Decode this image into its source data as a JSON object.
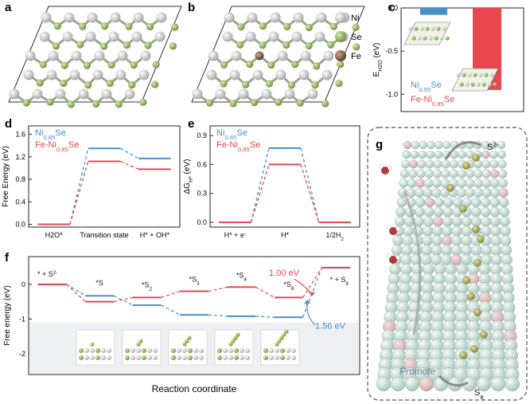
{
  "panels": {
    "a": {
      "label": "a"
    },
    "b": {
      "label": "b",
      "legend": [
        {
          "name": "Ni",
          "color": "#c9c9c9"
        },
        {
          "name": "Se",
          "color": "#9bbf63"
        },
        {
          "name": "Fe",
          "color": "#8a6a4e"
        }
      ]
    },
    "c": {
      "label": "c"
    },
    "d": {
      "label": "d"
    },
    "e": {
      "label": "e"
    },
    "f": {
      "label": "f"
    },
    "g": {
      "label": "g",
      "texts": {
        "s2": "S2-",
        "s8": "S8",
        "promote": "Promote"
      }
    }
  },
  "colors": {
    "ni085se": "#4a90c8",
    "fe_ni085se": "#e8474f"
  },
  "chart_data": [
    {
      "id": "c",
      "type": "bar",
      "ylabel": "E_H2O (eV)",
      "ylim": [
        -1.2,
        0.0
      ],
      "yticks": [
        0.0,
        -0.5,
        -1.0
      ],
      "series": [
        {
          "name": "Ni0.85Se",
          "values": [
            -0.08
          ]
        },
        {
          "name": "Fe-Ni0.85Se",
          "values": [
            -0.95
          ]
        }
      ]
    },
    {
      "id": "d",
      "type": "line",
      "ylabel": "Free Energy (eV)",
      "categories": [
        "H2O*",
        "Transition state",
        "H* + OH*"
      ],
      "ylim": [
        -0.05,
        1.75
      ],
      "yticks": [
        0.0,
        0.4,
        0.8,
        1.2,
        1.6
      ],
      "series": [
        {
          "name": "Ni0.85Se",
          "values": [
            0.0,
            1.35,
            1.17
          ]
        },
        {
          "name": "Fe-Ni0.85Se",
          "values": [
            0.0,
            1.12,
            0.98
          ]
        }
      ]
    },
    {
      "id": "e",
      "type": "line",
      "ylabel": "ΔG_H* (eV)",
      "categories": [
        "H* + e-",
        "H*",
        "1/2H2"
      ],
      "ylim": [
        -0.05,
        1.0
      ],
      "yticks": [
        0.0,
        0.3,
        0.6,
        0.9
      ],
      "series": [
        {
          "name": "Ni0.85Se",
          "values": [
            0.0,
            0.77,
            0.0
          ]
        },
        {
          "name": "Fe-Ni0.85Se",
          "values": [
            0.0,
            0.6,
            0.0
          ]
        }
      ]
    },
    {
      "id": "f",
      "type": "line",
      "ylabel": "Free energy (eV)",
      "xlabel": "Reaction coordinate",
      "categories": [
        "* + S2-",
        "*S",
        "*S2",
        "*S3",
        "*S4",
        "*S8",
        "* + S8"
      ],
      "ylim": [
        -2.6,
        0.8
      ],
      "yticks": [
        0,
        -1,
        -2
      ],
      "series": [
        {
          "name": "Ni0.85Se",
          "values": [
            0.0,
            -0.33,
            -0.6,
            -0.88,
            -0.92,
            -0.95,
            0.48
          ]
        },
        {
          "name": "Fe-Ni0.85Se",
          "values": [
            0.0,
            -0.5,
            -0.38,
            -0.2,
            -0.08,
            -0.38,
            0.48
          ]
        }
      ],
      "annotations": [
        "1.00 eV",
        "1.56 eV"
      ]
    }
  ]
}
